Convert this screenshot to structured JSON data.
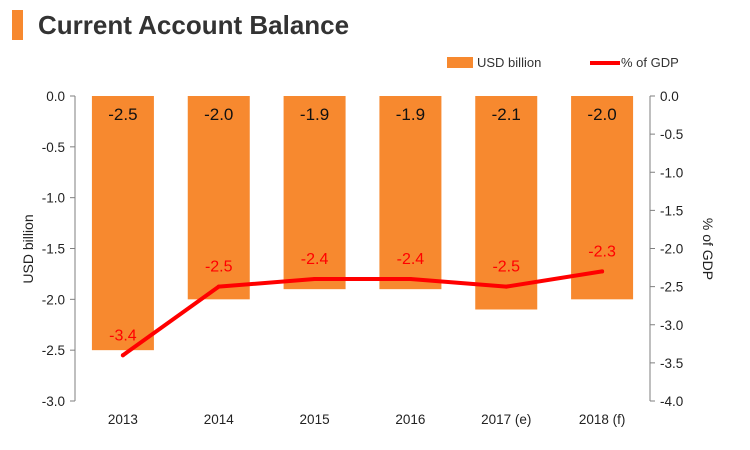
{
  "header": {
    "title": "Current Account Balance"
  },
  "colors": {
    "accent": "#F7892F",
    "bar": "#F7892F",
    "line": "#FF0000",
    "axis": "#7f7f7f"
  },
  "chart_data": {
    "type": "bar",
    "title": "Current Account Balance",
    "categories": [
      "2013",
      "2014",
      "2015",
      "2016",
      "2017 (e)",
      "2018 (f)"
    ],
    "series": [
      {
        "name": "USD billion",
        "type": "bar",
        "axis": "left",
        "values": [
          -2.5,
          -2.0,
          -1.9,
          -1.9,
          -2.1,
          -2.0
        ],
        "labels": [
          "-2.5",
          "-2.0",
          "-1.9",
          "-1.9",
          "-2.1",
          "-2.0"
        ]
      },
      {
        "name": "% of GDP",
        "type": "line",
        "axis": "right",
        "values": [
          -3.4,
          -2.5,
          -2.4,
          -2.4,
          -2.5,
          -2.3
        ],
        "labels": [
          "-3.4",
          "-2.5",
          "-2.4",
          "-2.4",
          "-2.5",
          "-2.3"
        ]
      }
    ],
    "y_left": {
      "label": "USD billion",
      "ylim": [
        -3.0,
        0.0
      ],
      "ticks": [
        "0.0",
        "-0.5",
        "-1.0",
        "-1.5",
        "-2.0",
        "-2.5",
        "-3.0"
      ]
    },
    "y_right": {
      "label": "% of GDP",
      "ylim": [
        -4.0,
        0.0
      ],
      "ticks": [
        "0.0",
        "-0.5",
        "-1.0",
        "-1.5",
        "-2.0",
        "-2.5",
        "-3.0",
        "-3.5",
        "-4.0"
      ]
    },
    "legend": {
      "position": "top-right",
      "entries": [
        "USD billion",
        "% of GDP"
      ]
    },
    "grid": false
  }
}
